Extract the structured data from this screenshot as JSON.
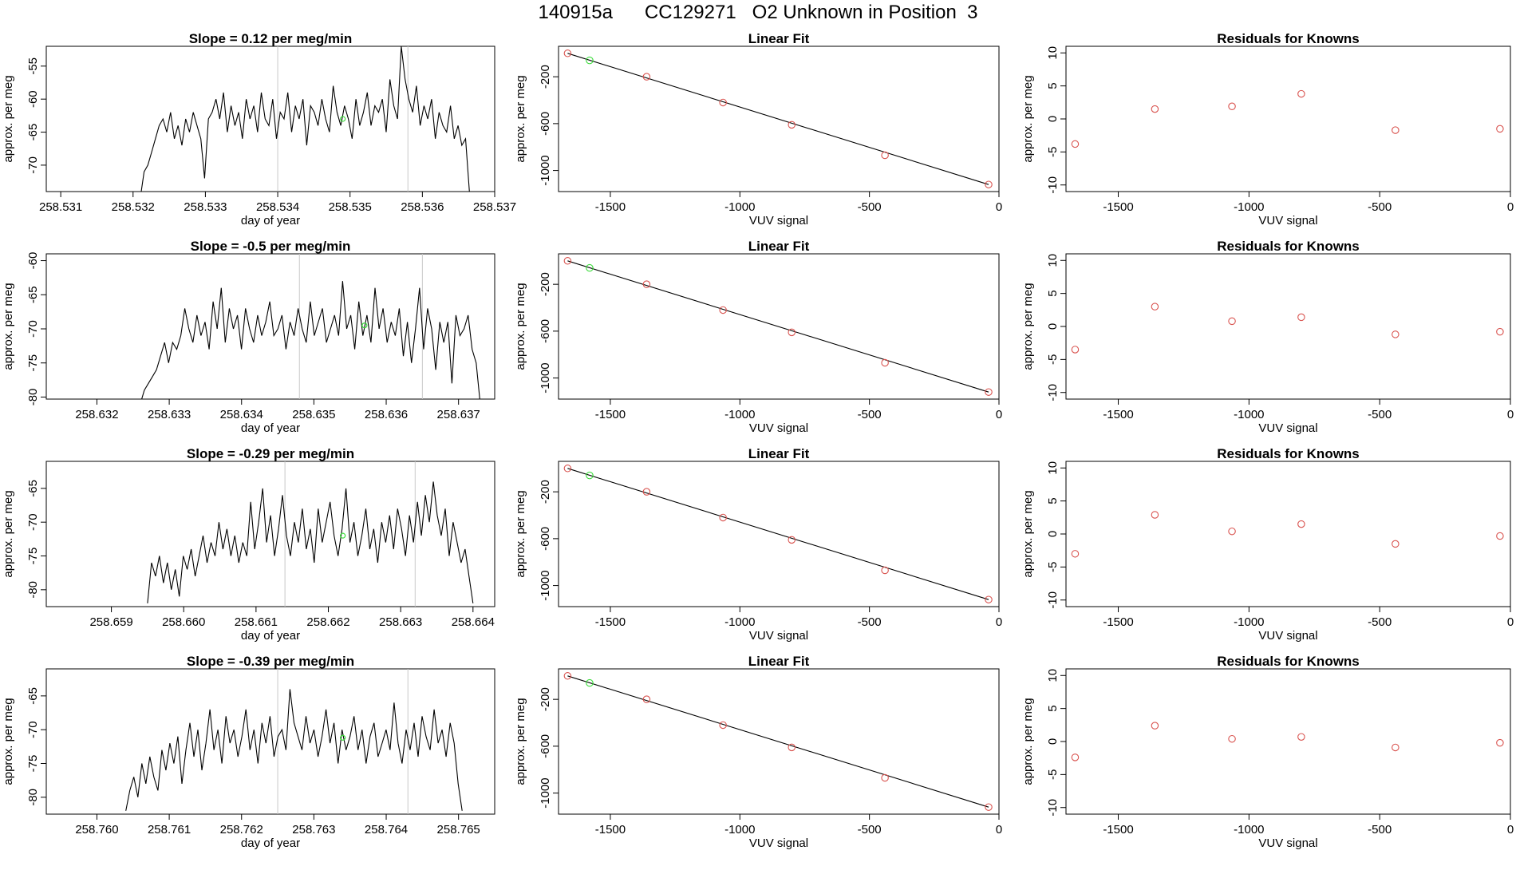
{
  "figure": {
    "title": "140915a      CC129271   O2 Unknown in Position  3",
    "colors": {
      "line": "#000000",
      "known_point": "#d9534f",
      "highlight_point": "#3cdc3c",
      "vline": "#c8c8c8"
    }
  },
  "chart_data": [
    {
      "type": "line",
      "panel": "timeseries-1",
      "title": "Slope =  0.12  per meg/min",
      "xlabel": "day of year",
      "ylabel": "approx. per meg",
      "xlim": [
        258.5308,
        258.537
      ],
      "ylim": [
        -74,
        -52
      ],
      "xticks": [
        258.531,
        258.532,
        258.533,
        258.534,
        258.535,
        258.536,
        258.537
      ],
      "xtick_labels": [
        "258.531",
        "258.532",
        "258.533",
        "258.534",
        "258.535",
        "258.536",
        "258.537"
      ],
      "yticks": [
        -55,
        -60,
        -65,
        -70
      ],
      "ytick_labels": [
        "-55",
        "-60",
        "-65",
        "-70"
      ],
      "vlines": [
        258.534,
        258.5358
      ],
      "highlight_point": [
        258.5349,
        -63
      ],
      "series": [
        {
          "x_start": 258.5321,
          "x_end": 258.53665,
          "seed": 11,
          "y": [
            -75.0,
            -71.0,
            -70.0,
            -68.0,
            -66.0,
            -64.0,
            -63.0,
            -65.0,
            -62.0,
            -66.0,
            -64.0,
            -67.0,
            -63.0,
            -65.0,
            -62.0,
            -64.0,
            -66.0,
            -72.0,
            -63.0,
            -62.0,
            -60.0,
            -63.0,
            -59.0,
            -65.0,
            -61.0,
            -64.0,
            -62.0,
            -66.0,
            -60.0,
            -63.0,
            -61.0,
            -65.0,
            -59.0,
            -63.0,
            -64.0,
            -60.0,
            -66.0,
            -62.0,
            -63.0,
            -59.0,
            -65.0,
            -61.0,
            -63.0,
            -60.0,
            -67.0,
            -61.0,
            -62.0,
            -64.0,
            -60.0,
            -63.0,
            -65.0,
            -58.0,
            -62.0,
            -64.0,
            -61.0,
            -63.0,
            -66.0,
            -60.0,
            -64.0,
            -62.0,
            -59.0,
            -64.0,
            -61.0,
            -62.0,
            -60.0,
            -65.0,
            -57.0,
            -61.0,
            -63.0,
            -52.0,
            -57.0,
            -60.0,
            -62.0,
            -58.0,
            -64.0,
            -61.0,
            -63.0,
            -60.0,
            -66.0,
            -62.0,
            -64.0,
            -65.0,
            -61.0,
            -66.0,
            -64.0,
            -67.0,
            -66.0,
            -74.0
          ]
        }
      ]
    },
    {
      "type": "line",
      "panel": "linearfit-1",
      "title": "Linear Fit",
      "xlabel": "VUV signal",
      "ylabel": "approx. per meg",
      "xlim": [
        -1700,
        0
      ],
      "ylim": [
        -1180,
        60
      ],
      "xticks": [
        -1500,
        -1000,
        -500,
        0
      ],
      "xtick_labels": [
        "-1500",
        "-1000",
        "-500",
        "0"
      ],
      "yticks": [
        -200,
        -600,
        -1000
      ],
      "ytick_labels": [
        "-200",
        "-600",
        "-1000"
      ],
      "fit_line": {
        "x": [
          -1665,
          -40
        ],
        "y": [
          0,
          -1120
        ]
      },
      "known_points": {
        "x": [
          -1665,
          -1360,
          -1065,
          -800,
          -440,
          -40
        ],
        "y": [
          0,
          -200,
          -420,
          -610,
          -870,
          -1120
        ]
      },
      "highlight_point": [
        -1580,
        -60
      ]
    },
    {
      "type": "scatter",
      "panel": "residuals-1",
      "title": "Residuals for Knowns",
      "xlabel": "VUV signal",
      "ylabel": "approx. per meg",
      "xlim": [
        -1700,
        0
      ],
      "ylim": [
        -11,
        11
      ],
      "xticks": [
        -1500,
        -1000,
        -500,
        0
      ],
      "xtick_labels": [
        "-1500",
        "-1000",
        "-500",
        "0"
      ],
      "yticks": [
        10,
        5,
        0,
        -5,
        -10
      ],
      "ytick_labels": [
        "10",
        "5",
        "0",
        "-5",
        "-10"
      ],
      "x": [
        -1665,
        -1360,
        -1065,
        -800,
        -440,
        -40
      ],
      "y": [
        -3.8,
        1.5,
        1.9,
        3.8,
        -1.7,
        -1.5
      ]
    },
    {
      "type": "line",
      "panel": "timeseries-2",
      "title": "Slope =  -0.5  per meg/min",
      "xlabel": "day of year",
      "ylabel": "approx. per meg",
      "xlim": [
        258.6313,
        258.6375
      ],
      "ylim": [
        -80.3,
        -59
      ],
      "xticks": [
        258.632,
        258.633,
        258.634,
        258.635,
        258.636,
        258.637
      ],
      "xtick_labels": [
        "258.632",
        "258.633",
        "258.634",
        "258.635",
        "258.636",
        "258.637"
      ],
      "yticks": [
        -60,
        -65,
        -70,
        -75,
        -80
      ],
      "ytick_labels": [
        "-60",
        "-65",
        "-70",
        "-75",
        "-80"
      ],
      "vlines": [
        258.6348,
        258.6365
      ],
      "highlight_point": [
        258.6357,
        -69.5
      ],
      "series": [
        {
          "x_start": 258.6326,
          "x_end": 258.6373,
          "seed": 23,
          "y": [
            -81.0,
            -79.0,
            -78.0,
            -77.0,
            -76.0,
            -74.0,
            -72.0,
            -75.0,
            -72.0,
            -73.0,
            -71.0,
            -67.0,
            -70.0,
            -72.0,
            -68.0,
            -71.0,
            -69.0,
            -73.0,
            -66.0,
            -70.0,
            -64.0,
            -72.0,
            -67.0,
            -70.0,
            -68.0,
            -73.0,
            -67.0,
            -70.0,
            -72.0,
            -68.0,
            -71.0,
            -69.0,
            -66.0,
            -71.0,
            -70.0,
            -68.0,
            -73.0,
            -69.0,
            -71.0,
            -67.0,
            -70.0,
            -72.0,
            -66.0,
            -71.0,
            -69.0,
            -67.0,
            -72.0,
            -70.0,
            -68.0,
            -71.0,
            -63.0,
            -70.0,
            -68.0,
            -73.0,
            -66.0,
            -71.0,
            -68.0,
            -72.0,
            -64.0,
            -70.0,
            -67.0,
            -72.0,
            -69.0,
            -71.0,
            -67.0,
            -74.0,
            -69.0,
            -75.0,
            -70.0,
            -64.0,
            -73.0,
            -67.0,
            -70.0,
            -76.0,
            -69.0,
            -72.0,
            -69.0,
            -78.0,
            -68.0,
            -71.0,
            -70.0,
            -68.0,
            -73.0,
            -75.0,
            -81.0
          ]
        }
      ]
    },
    {
      "type": "line",
      "panel": "linearfit-2",
      "title": "Linear Fit",
      "xlabel": "VUV signal",
      "ylabel": "approx. per meg",
      "xlim": [
        -1700,
        0
      ],
      "ylim": [
        -1180,
        60
      ],
      "xticks": [
        -1500,
        -1000,
        -500,
        0
      ],
      "xtick_labels": [
        "-1500",
        "-1000",
        "-500",
        "0"
      ],
      "yticks": [
        -200,
        -600,
        -1000
      ],
      "ytick_labels": [
        "-200",
        "-600",
        "-1000"
      ],
      "fit_line": {
        "x": [
          -1665,
          -40
        ],
        "y": [
          0,
          -1120
        ]
      },
      "known_points": {
        "x": [
          -1665,
          -1360,
          -1065,
          -800,
          -440,
          -40
        ],
        "y": [
          0,
          -200,
          -420,
          -610,
          -870,
          -1120
        ]
      },
      "highlight_point": [
        -1580,
        -60
      ]
    },
    {
      "type": "scatter",
      "panel": "residuals-2",
      "title": "Residuals for Knowns",
      "xlabel": "VUV signal",
      "ylabel": "approx. per meg",
      "xlim": [
        -1700,
        0
      ],
      "ylim": [
        -11,
        11
      ],
      "xticks": [
        -1500,
        -1000,
        -500,
        0
      ],
      "xtick_labels": [
        "-1500",
        "-1000",
        "-500",
        "0"
      ],
      "yticks": [
        10,
        5,
        0,
        -5,
        -10
      ],
      "ytick_labels": [
        "10",
        "5",
        "0",
        "-5",
        "-10"
      ],
      "x": [
        -1665,
        -1360,
        -1065,
        -800,
        -440,
        -40
      ],
      "y": [
        -3.5,
        3.0,
        0.8,
        1.4,
        -1.2,
        -0.8
      ]
    },
    {
      "type": "line",
      "panel": "timeseries-3",
      "title": "Slope =  -0.29  per meg/min",
      "xlabel": "day of year",
      "ylabel": "approx. per meg",
      "xlim": [
        258.6581,
        258.6643
      ],
      "ylim": [
        -82.5,
        -61
      ],
      "xticks": [
        258.659,
        258.66,
        258.661,
        258.662,
        258.663,
        258.664
      ],
      "xtick_labels": [
        "258.659",
        "258.660",
        "258.661",
        "258.662",
        "258.663",
        "258.664"
      ],
      "yticks": [
        -65,
        -70,
        -75,
        -80
      ],
      "ytick_labels": [
        "-65",
        "-70",
        "-75",
        "-80"
      ],
      "vlines": [
        258.6614,
        258.6632
      ],
      "highlight_point": [
        258.6622,
        -72
      ],
      "series": [
        {
          "x_start": 258.6595,
          "x_end": 258.664,
          "seed": 37,
          "y": [
            -82.0,
            -76.0,
            -78.0,
            -75.0,
            -79.0,
            -76.0,
            -80.0,
            -77.0,
            -81.0,
            -75.0,
            -77.0,
            -74.0,
            -78.0,
            -75.0,
            -72.0,
            -76.0,
            -73.0,
            -75.0,
            -70.0,
            -74.0,
            -71.0,
            -75.0,
            -72.0,
            -76.0,
            -73.0,
            -75.0,
            -67.0,
            -74.0,
            -70.0,
            -65.0,
            -73.0,
            -69.0,
            -75.0,
            -71.0,
            -66.0,
            -72.0,
            -75.0,
            -70.0,
            -73.0,
            -68.0,
            -74.0,
            -71.0,
            -76.0,
            -68.0,
            -73.0,
            -70.0,
            -67.0,
            -72.0,
            -75.0,
            -71.0,
            -65.0,
            -73.0,
            -70.0,
            -75.0,
            -72.0,
            -68.0,
            -74.0,
            -71.0,
            -76.0,
            -70.0,
            -73.0,
            -69.0,
            -74.0,
            -68.0,
            -71.0,
            -75.0,
            -69.0,
            -73.0,
            -67.0,
            -72.0,
            -66.0,
            -70.0,
            -64.0,
            -69.0,
            -72.0,
            -68.0,
            -75.0,
            -70.0,
            -73.0,
            -76.0,
            -74.0,
            -78.0,
            -82.0
          ]
        }
      ]
    },
    {
      "type": "line",
      "panel": "linearfit-3",
      "title": "Linear Fit",
      "xlabel": "VUV signal",
      "ylabel": "approx. per meg",
      "xlim": [
        -1700,
        0
      ],
      "ylim": [
        -1180,
        60
      ],
      "xticks": [
        -1500,
        -1000,
        -500,
        0
      ],
      "xtick_labels": [
        "-1500",
        "-1000",
        "-500",
        "0"
      ],
      "yticks": [
        -200,
        -600,
        -1000
      ],
      "ytick_labels": [
        "-200",
        "-600",
        "-1000"
      ],
      "fit_line": {
        "x": [
          -1665,
          -40
        ],
        "y": [
          0,
          -1120
        ]
      },
      "known_points": {
        "x": [
          -1665,
          -1360,
          -1065,
          -800,
          -440,
          -40
        ],
        "y": [
          0,
          -200,
          -420,
          -610,
          -870,
          -1120
        ]
      },
      "highlight_point": [
        -1580,
        -60
      ]
    },
    {
      "type": "scatter",
      "panel": "residuals-3",
      "title": "Residuals for Knowns",
      "xlabel": "VUV signal",
      "ylabel": "approx. per meg",
      "xlim": [
        -1700,
        0
      ],
      "ylim": [
        -11,
        11
      ],
      "xticks": [
        -1500,
        -1000,
        -500,
        0
      ],
      "xtick_labels": [
        "-1500",
        "-1000",
        "-500",
        "0"
      ],
      "yticks": [
        10,
        5,
        0,
        -5,
        -10
      ],
      "ytick_labels": [
        "10",
        "5",
        "0",
        "-5",
        "-10"
      ],
      "x": [
        -1665,
        -1360,
        -1065,
        -800,
        -440,
        -40
      ],
      "y": [
        -3.0,
        2.9,
        0.4,
        1.5,
        -1.5,
        -0.3
      ]
    },
    {
      "type": "line",
      "panel": "timeseries-4",
      "title": "Slope =  -0.39  per meg/min",
      "xlabel": "day of year",
      "ylabel": "approx. per meg",
      "xlim": [
        258.7593,
        258.7655
      ],
      "ylim": [
        -82.5,
        -61
      ],
      "xticks": [
        258.76,
        258.761,
        258.762,
        258.763,
        258.764,
        258.765
      ],
      "xtick_labels": [
        "258.760",
        "258.761",
        "258.762",
        "258.763",
        "258.764",
        "258.765"
      ],
      "yticks": [
        -65,
        -70,
        -75,
        -80
      ],
      "ytick_labels": [
        "-65",
        "-70",
        "-75",
        "-80"
      ],
      "vlines": [
        258.7625,
        258.7643
      ],
      "highlight_point": [
        258.7634,
        -71.2
      ],
      "series": [
        {
          "x_start": 258.7604,
          "x_end": 258.76505,
          "seed": 53,
          "y": [
            -82.0,
            -79.0,
            -77.0,
            -80.0,
            -75.0,
            -78.0,
            -74.0,
            -77.0,
            -79.0,
            -73.0,
            -76.0,
            -72.0,
            -75.0,
            -71.0,
            -78.0,
            -73.0,
            -69.0,
            -74.0,
            -70.0,
            -76.0,
            -72.0,
            -67.0,
            -73.0,
            -70.0,
            -75.0,
            -68.0,
            -72.0,
            -70.0,
            -74.0,
            -71.0,
            -67.0,
            -73.0,
            -70.0,
            -75.0,
            -69.0,
            -72.0,
            -68.0,
            -74.0,
            -71.0,
            -70.0,
            -73.0,
            -64.0,
            -69.0,
            -71.0,
            -73.0,
            -68.0,
            -72.0,
            -70.0,
            -74.0,
            -71.0,
            -67.0,
            -72.0,
            -69.0,
            -75.0,
            -70.0,
            -73.0,
            -71.0,
            -68.0,
            -73.0,
            -70.0,
            -75.0,
            -71.0,
            -69.0,
            -74.0,
            -72.0,
            -70.0,
            -73.0,
            -66.0,
            -72.0,
            -75.0,
            -70.0,
            -73.0,
            -69.0,
            -74.0,
            -68.0,
            -71.0,
            -73.0,
            -67.0,
            -72.0,
            -70.0,
            -74.0,
            -69.0,
            -72.0,
            -78.0,
            -82.0
          ]
        }
      ]
    },
    {
      "type": "line",
      "panel": "linearfit-4",
      "title": "Linear Fit",
      "xlabel": "VUV signal",
      "ylabel": "approx. per meg",
      "xlim": [
        -1700,
        0
      ],
      "ylim": [
        -1180,
        60
      ],
      "xticks": [
        -1500,
        -1000,
        -500,
        0
      ],
      "xtick_labels": [
        "-1500",
        "-1000",
        "-500",
        "0"
      ],
      "yticks": [
        -200,
        -600,
        -1000
      ],
      "ytick_labels": [
        "-200",
        "-600",
        "-1000"
      ],
      "fit_line": {
        "x": [
          -1665,
          -40
        ],
        "y": [
          0,
          -1120
        ]
      },
      "known_points": {
        "x": [
          -1665,
          -1360,
          -1065,
          -800,
          -440,
          -40
        ],
        "y": [
          0,
          -200,
          -420,
          -610,
          -870,
          -1120
        ]
      },
      "highlight_point": [
        -1580,
        -60
      ]
    },
    {
      "type": "scatter",
      "panel": "residuals-4",
      "title": "Residuals for Knowns",
      "xlabel": "VUV signal",
      "ylabel": "approx. per meg",
      "xlim": [
        -1700,
        0
      ],
      "ylim": [
        -11,
        11
      ],
      "xticks": [
        -1500,
        -1000,
        -500,
        0
      ],
      "xtick_labels": [
        "-1500",
        "-1000",
        "-500",
        "0"
      ],
      "yticks": [
        10,
        5,
        0,
        -5,
        -10
      ],
      "ytick_labels": [
        "10",
        "5",
        "0",
        "-5",
        "-10"
      ],
      "x": [
        -1665,
        -1360,
        -1065,
        -800,
        -440,
        -40
      ],
      "y": [
        -2.4,
        2.4,
        0.4,
        0.7,
        -0.9,
        -0.2
      ]
    }
  ]
}
